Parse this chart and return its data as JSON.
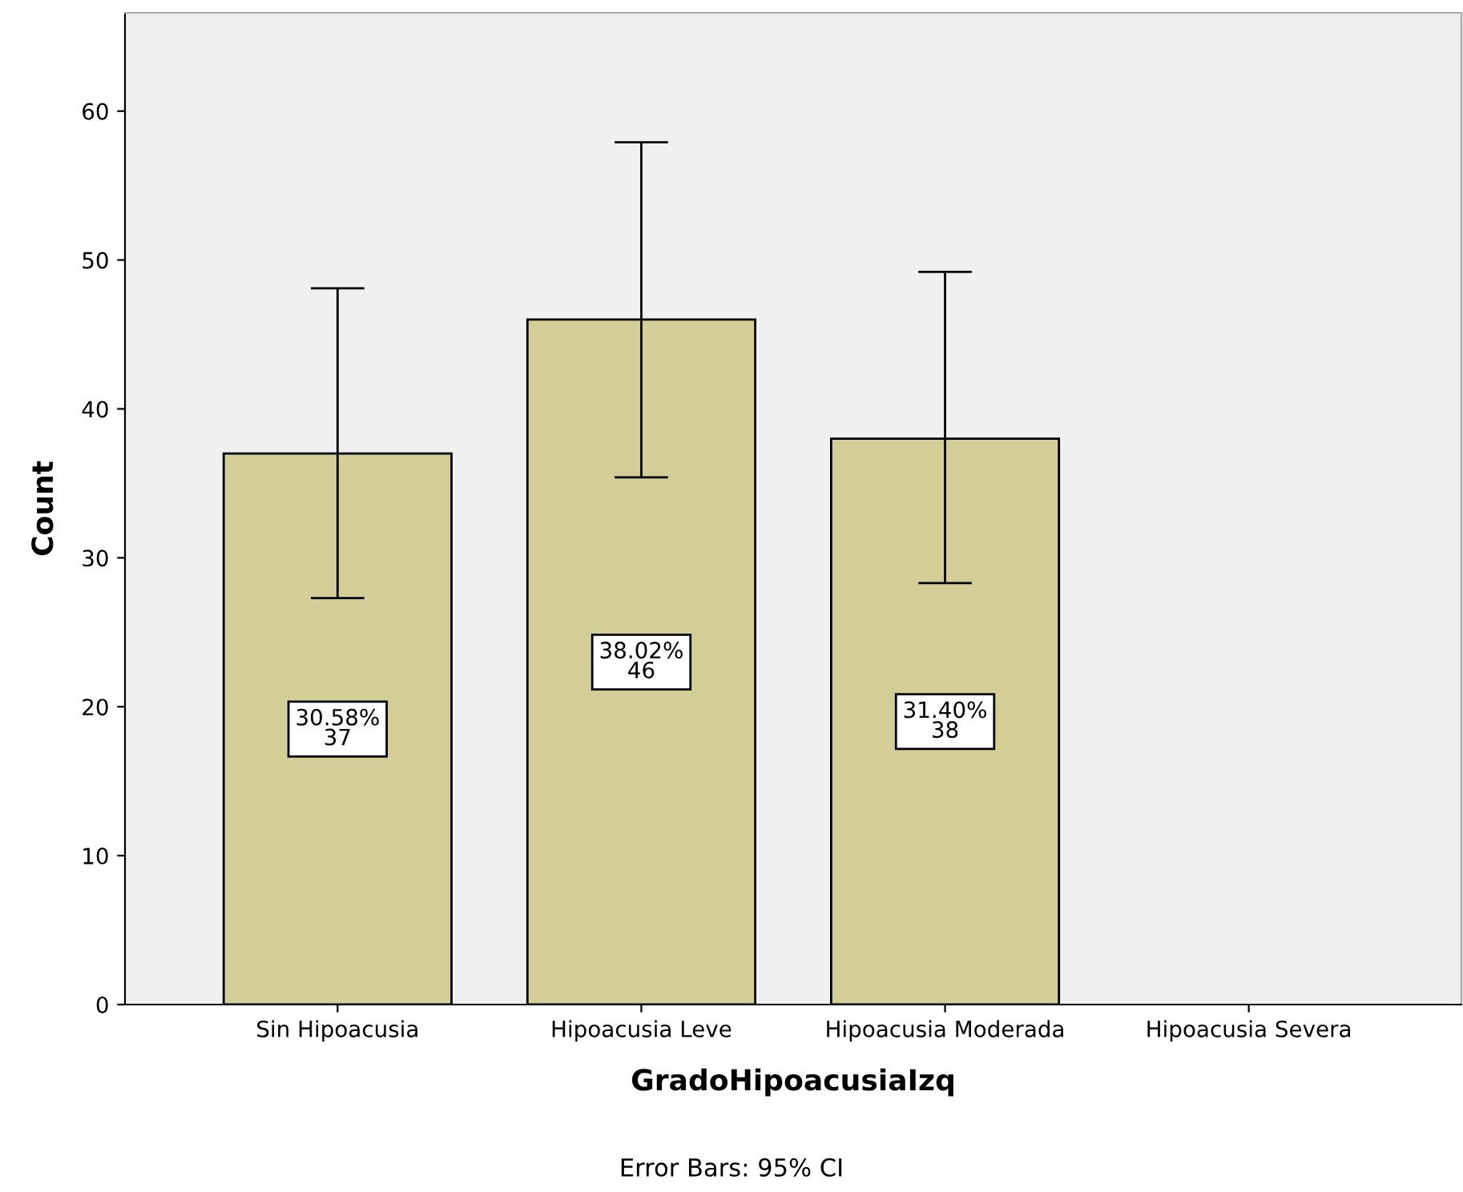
{
  "chart_data": {
    "type": "bar",
    "xlabel": "GradoHipoacusiaIzq",
    "ylabel": "Count",
    "categories": [
      "Sin Hipoacusia",
      "Hipoacusia Leve",
      "Hipoacusia Moderada",
      "Hipoacusia Severa"
    ],
    "values": [
      37,
      46,
      38,
      null
    ],
    "errors": [
      [
        27.3,
        48.1
      ],
      [
        35.4,
        57.9
      ],
      [
        28.3,
        49.2
      ],
      null
    ],
    "value_labels": [
      "30.58%\n37",
      "38.02%\n46",
      "31.40%\n38",
      null
    ],
    "color": "#d3ce98",
    "ylim": [
      0,
      66.6
    ],
    "yticks": [
      0,
      10,
      20,
      30,
      40,
      50,
      60
    ],
    "grid": false,
    "annotations": [
      "Error Bars: 95% CI"
    ]
  }
}
